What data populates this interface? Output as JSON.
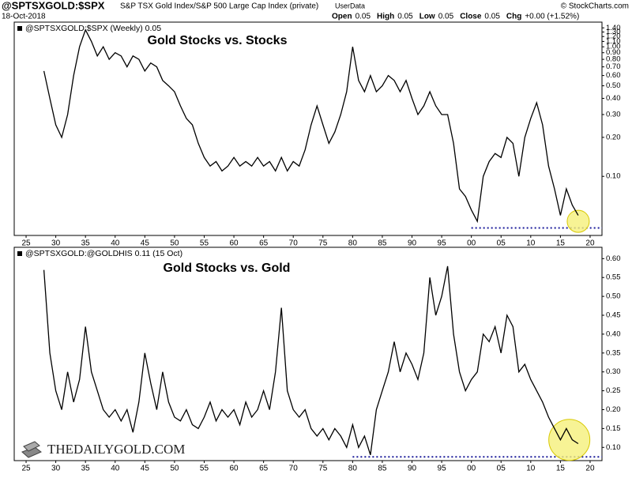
{
  "header": {
    "symbol": "@SPTSXGOLD:$SPX",
    "description": "S&P TSX Gold Index/S&P 500 Large Cap Index (private)",
    "source": "UserData",
    "date": "18-Oct-2018",
    "quote": [
      {
        "label": "Open",
        "value": "0.05"
      },
      {
        "label": "High",
        "value": "0.05"
      },
      {
        "label": "Low",
        "value": "0.05"
      },
      {
        "label": "Close",
        "value": "0.05"
      },
      {
        "label": "Chg",
        "value": "+0.00 (+1.52%)"
      }
    ],
    "credit": "© StockCharts.com"
  },
  "watermark": "THEDAILYGOLD.COM",
  "chart_data": [
    {
      "type": "line",
      "title": "Gold Stocks vs. Stocks",
      "legend": "@SPTSXGOLD:$SPX (Weekly) 0.05",
      "color": "#000000",
      "log_scale": true,
      "x": [
        1928,
        1929,
        1930,
        1931,
        1932,
        1933,
        1934,
        1935,
        1936,
        1937,
        1938,
        1939,
        1940,
        1941,
        1942,
        1943,
        1944,
        1945,
        1946,
        1947,
        1948,
        1949,
        1950,
        1951,
        1952,
        1953,
        1954,
        1955,
        1956,
        1957,
        1958,
        1959,
        1960,
        1961,
        1962,
        1963,
        1964,
        1965,
        1966,
        1967,
        1968,
        1969,
        1970,
        1971,
        1972,
        1973,
        1974,
        1975,
        1976,
        1977,
        1978,
        1979,
        1980,
        1981,
        1982,
        1983,
        1984,
        1985,
        1986,
        1987,
        1988,
        1989,
        1990,
        1991,
        1992,
        1993,
        1994,
        1995,
        1996,
        1997,
        1998,
        1999,
        2000,
        2001,
        2002,
        2003,
        2004,
        2005,
        2006,
        2007,
        2008,
        2009,
        2010,
        2011,
        2012,
        2013,
        2014,
        2015,
        2016,
        2017,
        2018
      ],
      "values": [
        0.65,
        0.4,
        0.25,
        0.2,
        0.3,
        0.6,
        1.0,
        1.35,
        1.1,
        0.85,
        1.0,
        0.8,
        0.9,
        0.85,
        0.7,
        0.85,
        0.8,
        0.65,
        0.75,
        0.7,
        0.55,
        0.5,
        0.45,
        0.35,
        0.28,
        0.25,
        0.18,
        0.14,
        0.12,
        0.13,
        0.11,
        0.12,
        0.14,
        0.12,
        0.13,
        0.12,
        0.14,
        0.12,
        0.13,
        0.11,
        0.14,
        0.11,
        0.13,
        0.12,
        0.16,
        0.25,
        0.35,
        0.25,
        0.18,
        0.22,
        0.3,
        0.45,
        1.0,
        0.55,
        0.45,
        0.6,
        0.45,
        0.5,
        0.6,
        0.55,
        0.45,
        0.55,
        0.4,
        0.3,
        0.35,
        0.45,
        0.35,
        0.3,
        0.3,
        0.18,
        0.08,
        0.07,
        0.055,
        0.045,
        0.1,
        0.13,
        0.15,
        0.14,
        0.2,
        0.18,
        0.1,
        0.2,
        0.28,
        0.37,
        0.25,
        0.12,
        0.08,
        0.05,
        0.08,
        0.06,
        0.05
      ],
      "xlim": [
        1923,
        2022
      ],
      "ylim": [
        0.035,
        1.55
      ],
      "xticks": [
        {
          "value": 1925,
          "label": "25"
        },
        {
          "value": 1930,
          "label": "30"
        },
        {
          "value": 1935,
          "label": "35"
        },
        {
          "value": 1940,
          "label": "40"
        },
        {
          "value": 1945,
          "label": "45"
        },
        {
          "value": 1950,
          "label": "50"
        },
        {
          "value": 1955,
          "label": "55"
        },
        {
          "value": 1960,
          "label": "60"
        },
        {
          "value": 1965,
          "label": "65"
        },
        {
          "value": 1970,
          "label": "70"
        },
        {
          "value": 1975,
          "label": "75"
        },
        {
          "value": 1980,
          "label": "80"
        },
        {
          "value": 1985,
          "label": "85"
        },
        {
          "value": 1990,
          "label": "90"
        },
        {
          "value": 1995,
          "label": "95"
        },
        {
          "value": 2000,
          "label": "00"
        },
        {
          "value": 2005,
          "label": "05"
        },
        {
          "value": 2010,
          "label": "10"
        },
        {
          "value": 2015,
          "label": "15"
        },
        {
          "value": 2020,
          "label": "20"
        }
      ],
      "yticks": [
        {
          "value": 0.1,
          "label": "0.10"
        },
        {
          "value": 0.2,
          "label": "0.20"
        },
        {
          "value": 0.3,
          "label": "0.30"
        },
        {
          "value": 0.4,
          "label": "0.40"
        },
        {
          "value": 0.5,
          "label": "0.50"
        },
        {
          "value": 0.6,
          "label": "0.60"
        },
        {
          "value": 0.7,
          "label": "0.70"
        },
        {
          "value": 0.8,
          "label": "0.80"
        },
        {
          "value": 0.9,
          "label": "0.90"
        },
        {
          "value": 1.0,
          "label": "1.00"
        },
        {
          "value": 1.1,
          "label": "1.10"
        },
        {
          "value": 1.2,
          "label": "1.20"
        },
        {
          "value": 1.3,
          "label": "1.30"
        },
        {
          "value": 1.4,
          "label": "1.40"
        }
      ],
      "reference_line": {
        "value": 0.04,
        "from": 2000,
        "color": "#1a1a9a"
      },
      "highlight": {
        "x": 2018,
        "y": 0.045,
        "color": "#f5f07a"
      }
    },
    {
      "type": "line",
      "title": "Gold Stocks vs. Gold",
      "legend": "@SPTSXGOLD:@GOLDHIS 0.11 (15 Oct)",
      "color": "#000000",
      "log_scale": false,
      "x": [
        1928,
        1929,
        1930,
        1931,
        1932,
        1933,
        1934,
        1935,
        1936,
        1937,
        1938,
        1939,
        1940,
        1941,
        1942,
        1943,
        1944,
        1945,
        1946,
        1947,
        1948,
        1949,
        1950,
        1951,
        1952,
        1953,
        1954,
        1955,
        1956,
        1957,
        1958,
        1959,
        1960,
        1961,
        1962,
        1963,
        1964,
        1965,
        1966,
        1967,
        1968,
        1969,
        1970,
        1971,
        1972,
        1973,
        1974,
        1975,
        1976,
        1977,
        1978,
        1979,
        1980,
        1981,
        1982,
        1983,
        1984,
        1985,
        1986,
        1987,
        1988,
        1989,
        1990,
        1991,
        1992,
        1993,
        1994,
        1995,
        1996,
        1997,
        1998,
        1999,
        2000,
        2001,
        2002,
        2003,
        2004,
        2005,
        2006,
        2007,
        2008,
        2009,
        2010,
        2011,
        2012,
        2013,
        2014,
        2015,
        2016,
        2017,
        2018
      ],
      "values": [
        0.57,
        0.35,
        0.25,
        0.2,
        0.3,
        0.22,
        0.28,
        0.42,
        0.3,
        0.25,
        0.2,
        0.18,
        0.2,
        0.17,
        0.2,
        0.14,
        0.22,
        0.35,
        0.27,
        0.2,
        0.3,
        0.22,
        0.18,
        0.17,
        0.2,
        0.16,
        0.15,
        0.18,
        0.22,
        0.17,
        0.2,
        0.18,
        0.2,
        0.16,
        0.22,
        0.18,
        0.2,
        0.25,
        0.2,
        0.3,
        0.47,
        0.25,
        0.2,
        0.18,
        0.2,
        0.15,
        0.13,
        0.15,
        0.12,
        0.15,
        0.13,
        0.1,
        0.16,
        0.1,
        0.13,
        0.08,
        0.2,
        0.25,
        0.3,
        0.38,
        0.3,
        0.35,
        0.32,
        0.28,
        0.35,
        0.55,
        0.45,
        0.5,
        0.58,
        0.4,
        0.3,
        0.25,
        0.28,
        0.3,
        0.4,
        0.38,
        0.42,
        0.35,
        0.45,
        0.42,
        0.3,
        0.32,
        0.28,
        0.25,
        0.22,
        0.18,
        0.15,
        0.12,
        0.15,
        0.12,
        0.11
      ],
      "xlim": [
        1923,
        2022
      ],
      "ylim": [
        0.065,
        0.63
      ],
      "xticks": [
        {
          "value": 1925,
          "label": "25"
        },
        {
          "value": 1930,
          "label": "30"
        },
        {
          "value": 1935,
          "label": "35"
        },
        {
          "value": 1940,
          "label": "40"
        },
        {
          "value": 1945,
          "label": "45"
        },
        {
          "value": 1950,
          "label": "50"
        },
        {
          "value": 1955,
          "label": "55"
        },
        {
          "value": 1960,
          "label": "60"
        },
        {
          "value": 1965,
          "label": "65"
        },
        {
          "value": 1970,
          "label": "70"
        },
        {
          "value": 1975,
          "label": "75"
        },
        {
          "value": 1980,
          "label": "80"
        },
        {
          "value": 1985,
          "label": "85"
        },
        {
          "value": 1990,
          "label": "90"
        },
        {
          "value": 1995,
          "label": "95"
        },
        {
          "value": 2000,
          "label": "00"
        },
        {
          "value": 2005,
          "label": "05"
        },
        {
          "value": 2010,
          "label": "10"
        },
        {
          "value": 2015,
          "label": "15"
        },
        {
          "value": 2020,
          "label": "20"
        }
      ],
      "yticks": [
        {
          "value": 0.1,
          "label": "0.10"
        },
        {
          "value": 0.15,
          "label": "0.15"
        },
        {
          "value": 0.2,
          "label": "0.20"
        },
        {
          "value": 0.25,
          "label": "0.25"
        },
        {
          "value": 0.3,
          "label": "0.30"
        },
        {
          "value": 0.35,
          "label": "0.35"
        },
        {
          "value": 0.4,
          "label": "0.40"
        },
        {
          "value": 0.45,
          "label": "0.45"
        },
        {
          "value": 0.5,
          "label": "0.50"
        },
        {
          "value": 0.55,
          "label": "0.55"
        },
        {
          "value": 0.6,
          "label": "0.60"
        }
      ],
      "reference_line": {
        "value": 0.075,
        "from": 1980,
        "color": "#1a1a9a"
      },
      "highlight": {
        "x": 2016.5,
        "y": 0.12,
        "color": "#f5f07a"
      }
    }
  ]
}
